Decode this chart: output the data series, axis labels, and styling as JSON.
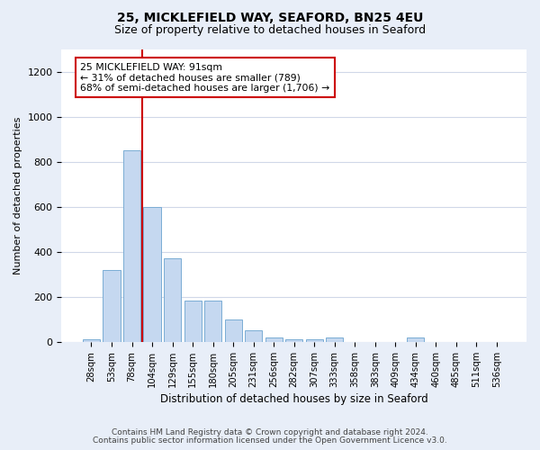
{
  "title1": "25, MICKLEFIELD WAY, SEAFORD, BN25 4EU",
  "title2": "Size of property relative to detached houses in Seaford",
  "xlabel": "Distribution of detached houses by size in Seaford",
  "ylabel": "Number of detached properties",
  "bar_color": "#c5d8f0",
  "bar_edge_color": "#7aadd4",
  "categories": [
    "28sqm",
    "53sqm",
    "78sqm",
    "104sqm",
    "129sqm",
    "155sqm",
    "180sqm",
    "205sqm",
    "231sqm",
    "256sqm",
    "282sqm",
    "307sqm",
    "333sqm",
    "358sqm",
    "383sqm",
    "409sqm",
    "434sqm",
    "460sqm",
    "485sqm",
    "511sqm",
    "536sqm"
  ],
  "values": [
    10,
    318,
    850,
    600,
    370,
    185,
    185,
    100,
    50,
    20,
    12,
    12,
    20,
    0,
    0,
    0,
    20,
    0,
    0,
    0,
    0
  ],
  "ylim": [
    0,
    1300
  ],
  "yticks": [
    0,
    200,
    400,
    600,
    800,
    1000,
    1200
  ],
  "property_line_x": 2.5,
  "annotation_text": "25 MICKLEFIELD WAY: 91sqm\n← 31% of detached houses are smaller (789)\n68% of semi-detached houses are larger (1,706) →",
  "annotation_box_color": "#ffffff",
  "annotation_box_edge": "#cc0000",
  "vline_color": "#cc0000",
  "footer1": "Contains HM Land Registry data © Crown copyright and database right 2024.",
  "footer2": "Contains public sector information licensed under the Open Government Licence v3.0.",
  "bg_color": "#e8eef8",
  "plot_bg_color": "#ffffff",
  "grid_color": "#d0d8e8"
}
